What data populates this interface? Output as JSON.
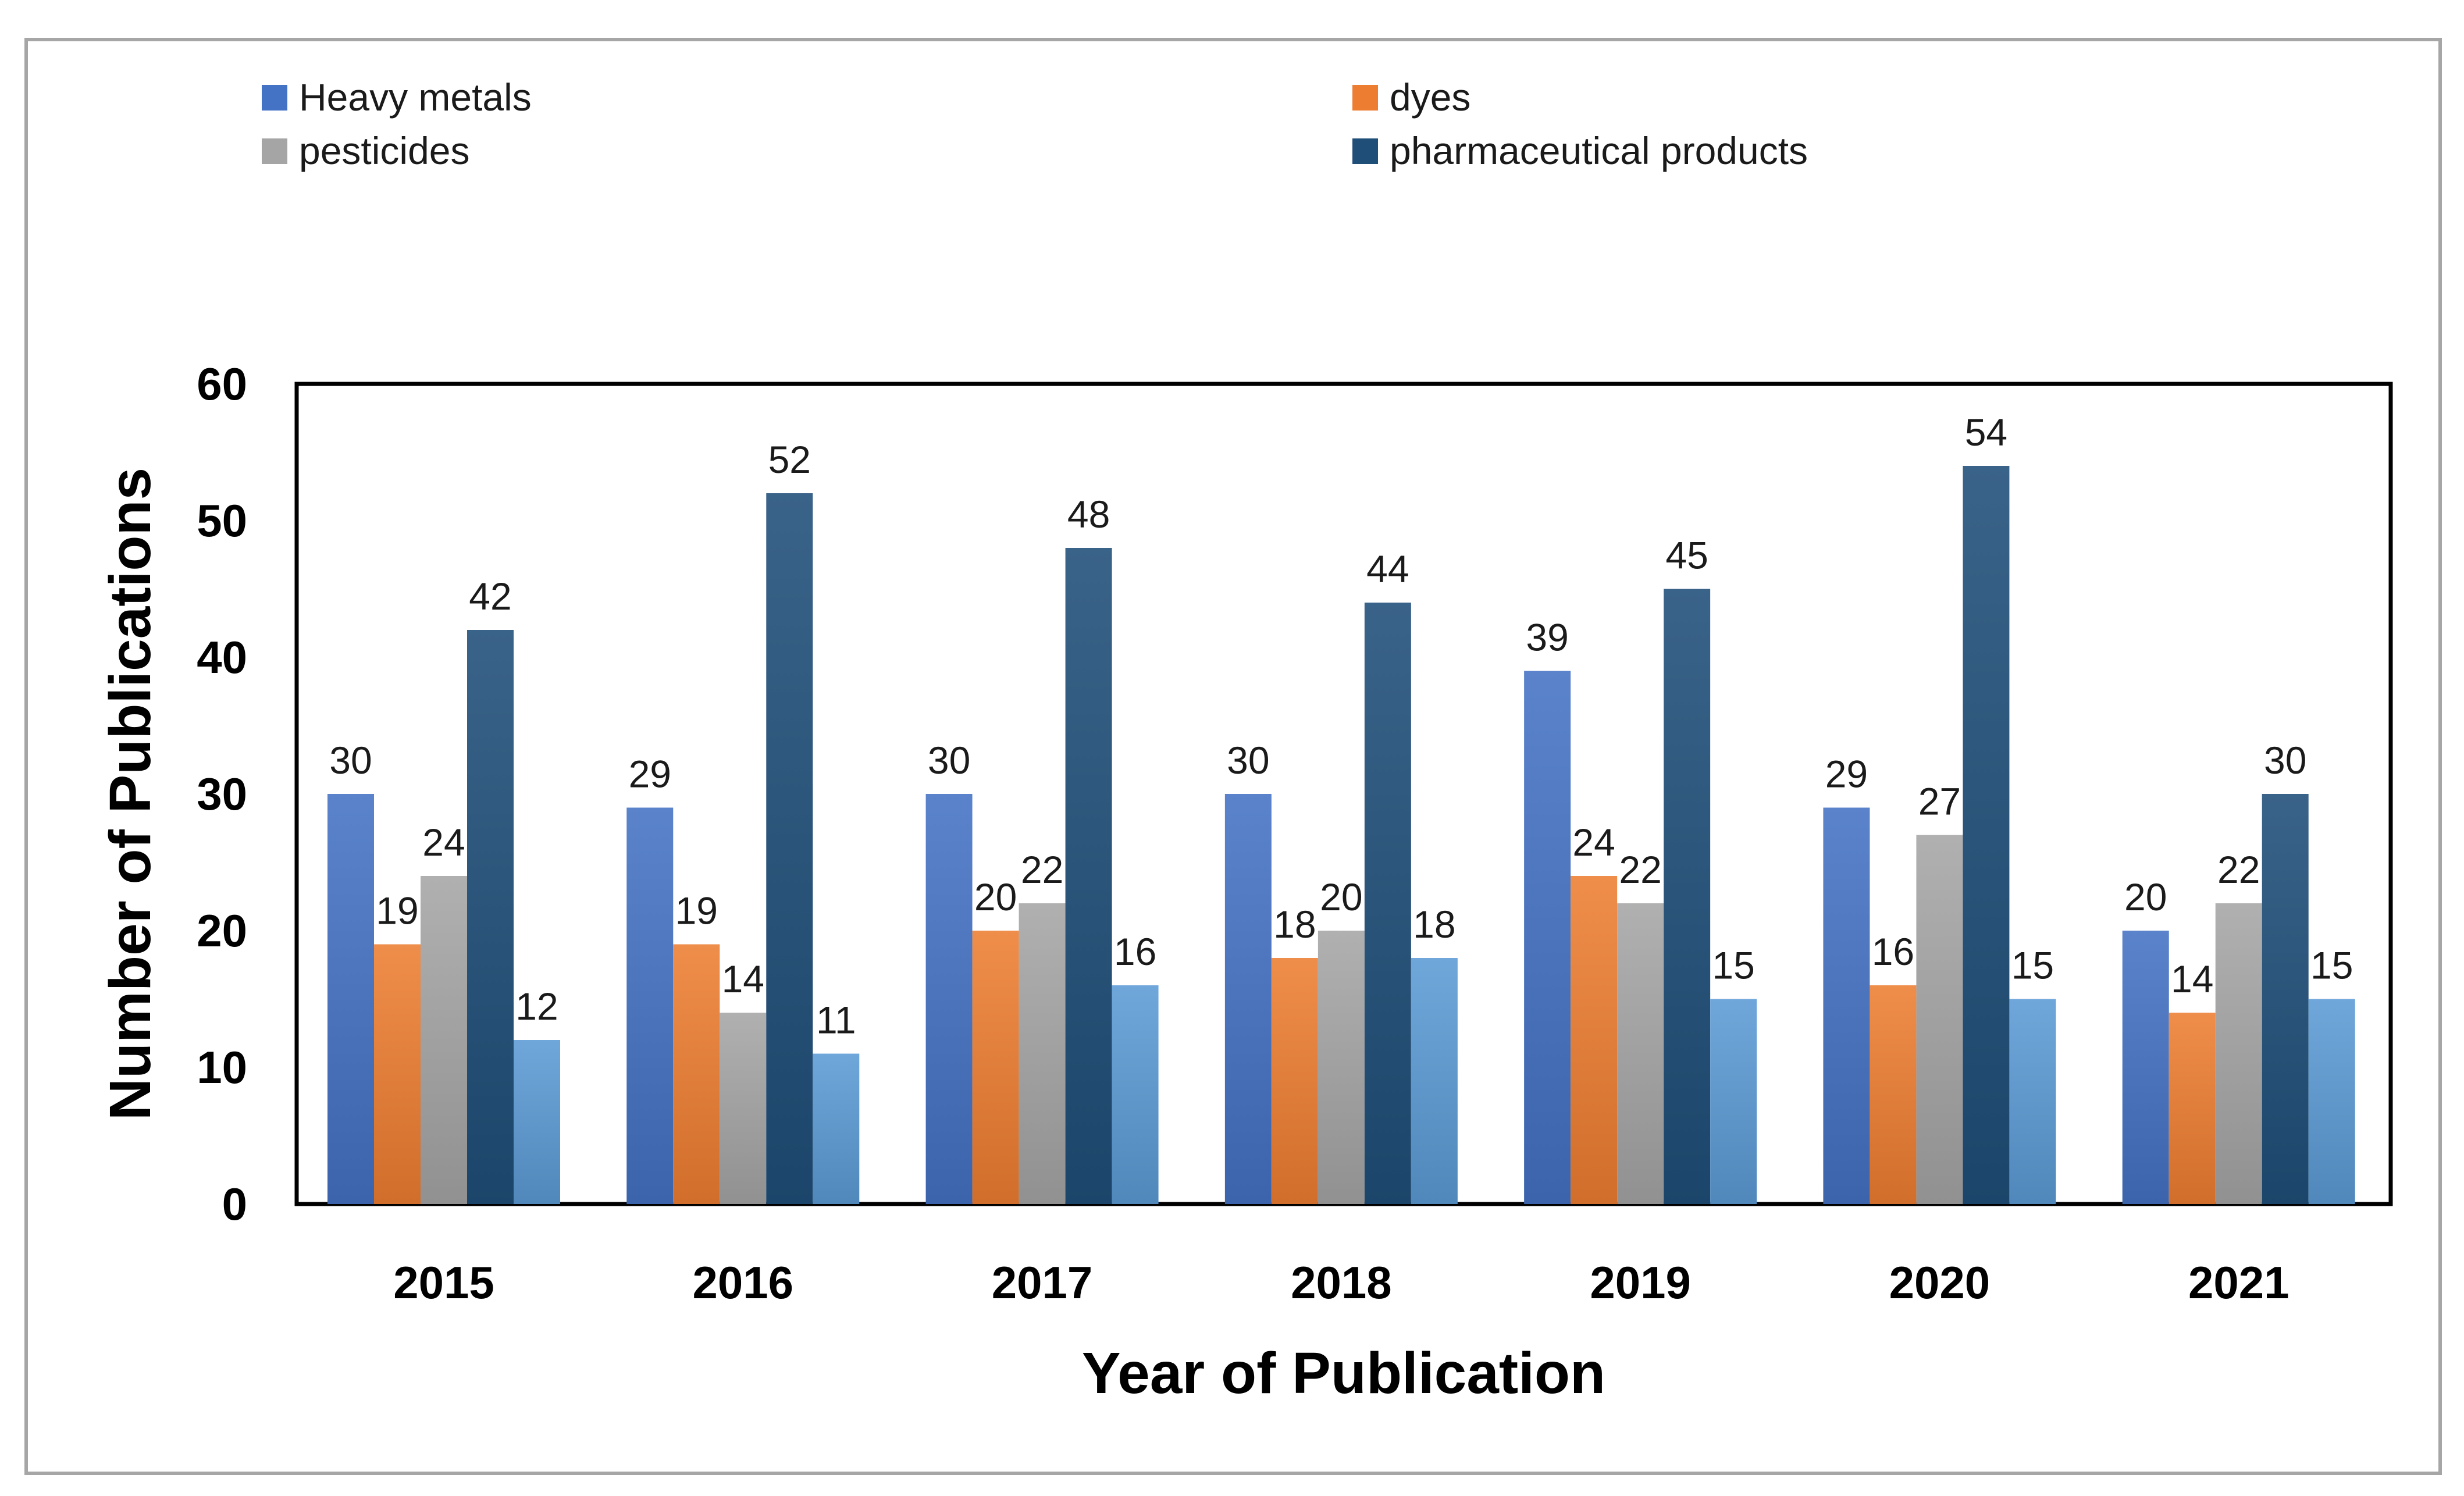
{
  "chart_data": {
    "type": "bar",
    "title": "",
    "xlabel": "Year of Publication",
    "ylabel": "Number of Publications",
    "ylim": [
      0,
      60
    ],
    "yticks": [
      0,
      10,
      20,
      30,
      40,
      50,
      60
    ],
    "grid": false,
    "legend_position": "top",
    "categories": [
      "2015",
      "2016",
      "2017",
      "2018",
      "2019",
      "2020",
      "2021"
    ],
    "series": [
      {
        "name": "Heavy metals",
        "color": "#4472C4",
        "values": [
          30,
          29,
          30,
          30,
          39,
          29,
          20
        ]
      },
      {
        "name": "dyes",
        "color": "#ED7D31",
        "values": [
          19,
          19,
          20,
          18,
          24,
          16,
          14
        ]
      },
      {
        "name": "pesticides",
        "color": "#A5A5A5",
        "values": [
          24,
          14,
          22,
          20,
          22,
          27,
          22
        ]
      },
      {
        "name": "pharmaceutical products",
        "color": "#1F4E79",
        "values": [
          42,
          52,
          48,
          44,
          45,
          54,
          30
        ]
      },
      {
        "name": "",
        "color": "#5B9BD5",
        "values": [
          12,
          11,
          16,
          18,
          15,
          15,
          15
        ]
      }
    ]
  }
}
